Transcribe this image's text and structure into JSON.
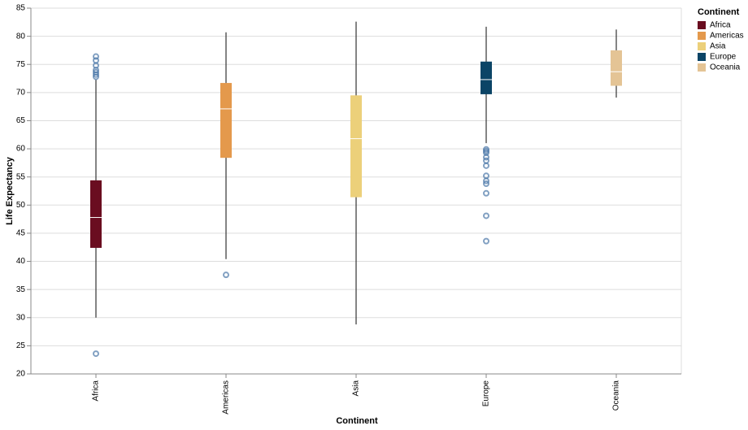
{
  "chart_data": {
    "type": "boxplot",
    "x_label": "Continent",
    "y_label": "Life Expectancy",
    "legend_title": "Continent",
    "ylim": [
      20,
      85
    ],
    "yticks": [
      20,
      25,
      30,
      35,
      40,
      45,
      50,
      55,
      60,
      65,
      70,
      75,
      80,
      85
    ],
    "grid": true,
    "outlier_color": "#4c78a8",
    "boxes": [
      {
        "name": "Africa",
        "color": "#6a0d20",
        "min": 30.0,
        "q1": 42.4,
        "median": 47.8,
        "q3": 54.4,
        "max": 72.3,
        "outliers": [
          76.4,
          75.7,
          74.8,
          74.0,
          73.6,
          73.2,
          72.8,
          23.6
        ]
      },
      {
        "name": "Americas",
        "color": "#e4994c",
        "min": 40.4,
        "q1": 58.4,
        "median": 67.1,
        "q3": 71.7,
        "max": 80.7,
        "outliers": [
          37.6
        ]
      },
      {
        "name": "Asia",
        "color": "#ecd07a",
        "min": 28.8,
        "q1": 51.4,
        "median": 61.8,
        "q3": 69.5,
        "max": 82.6,
        "outliers": []
      },
      {
        "name": "Europe",
        "color": "#0b4466",
        "min": 61.0,
        "q1": 69.7,
        "median": 72.3,
        "q3": 75.5,
        "max": 81.7,
        "outliers": [
          59.9,
          59.6,
          59.3,
          58.5,
          57.9,
          57.0,
          55.2,
          54.3,
          53.8,
          52.1,
          48.1,
          43.6
        ]
      },
      {
        "name": "Oceania",
        "color": "#e4c495",
        "min": 69.1,
        "q1": 71.2,
        "median": 73.7,
        "q3": 77.5,
        "max": 81.2,
        "outliers": []
      }
    ]
  }
}
